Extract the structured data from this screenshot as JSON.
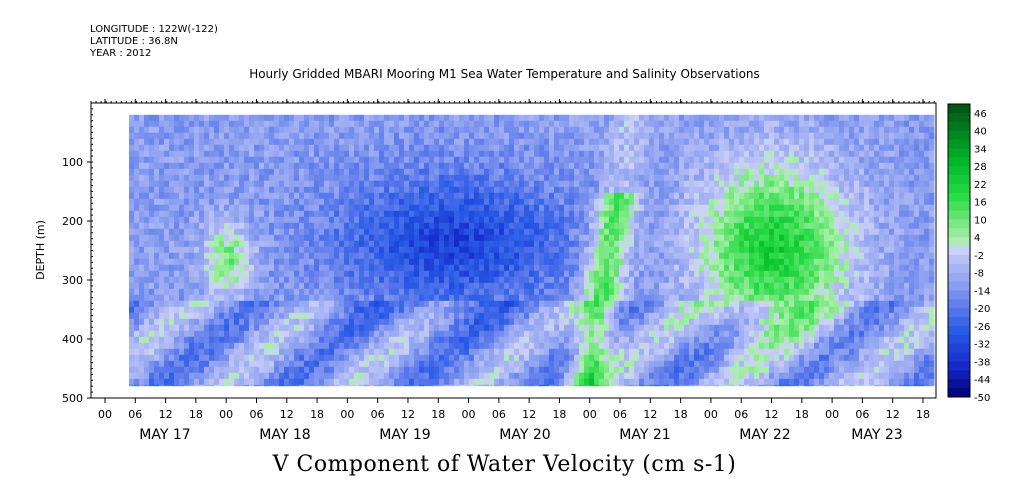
{
  "header": {
    "longitude": "LONGITUDE : 122W(-122)",
    "latitude": "LATITUDE : 36.8N",
    "year": "YEAR : 2012",
    "title": "Hourly Gridded MBARI Mooring M1 Sea Water Temperature and Salinity Observations"
  },
  "chart_data": {
    "type": "heatmap",
    "title": "Hourly Gridded MBARI Mooring M1 Sea Water Temperature and Salinity Observations",
    "xlabel": "V Component of Water Velocity (cm s-1)",
    "ylabel": "DEPTH (m)",
    "ylim": [
      500,
      0
    ],
    "y_ticks": [
      100,
      200,
      300,
      400,
      500
    ],
    "x_hour_ticks": [
      "00",
      "06",
      "12",
      "18",
      "00",
      "06",
      "12",
      "18",
      "00",
      "06",
      "12",
      "18",
      "00",
      "06",
      "12",
      "18",
      "00",
      "06",
      "12",
      "18",
      "00",
      "06",
      "12",
      "18",
      "00",
      "06",
      "12",
      "18"
    ],
    "x_day_labels": [
      "MAY 17",
      "MAY 18",
      "MAY 19",
      "MAY 20",
      "MAY 21",
      "MAY 22",
      "MAY 23"
    ],
    "colorbar_labels": [
      "46",
      "40",
      "34",
      "28",
      "22",
      "16",
      "10",
      "4",
      "-2",
      "-8",
      "-14",
      "-20",
      "-26",
      "-32",
      "-38",
      "-44",
      "-50"
    ],
    "colorbar_range": [
      -50,
      49
    ],
    "colors": {
      "strong_negative": "#000066",
      "negative": "#2a5ae0",
      "weak_negative": "#9aa8f0",
      "near_zero": "#c8ccf6",
      "weak_positive": "#8fe88f",
      "positive": "#22dd44",
      "strong_positive": "#005a10"
    },
    "field_description_series": [
      {
        "name": "data_time_start_hour",
        "values": [
          0
        ]
      },
      {
        "name": "data_time_end_hour",
        "values": [
          160
        ]
      }
    ]
  }
}
